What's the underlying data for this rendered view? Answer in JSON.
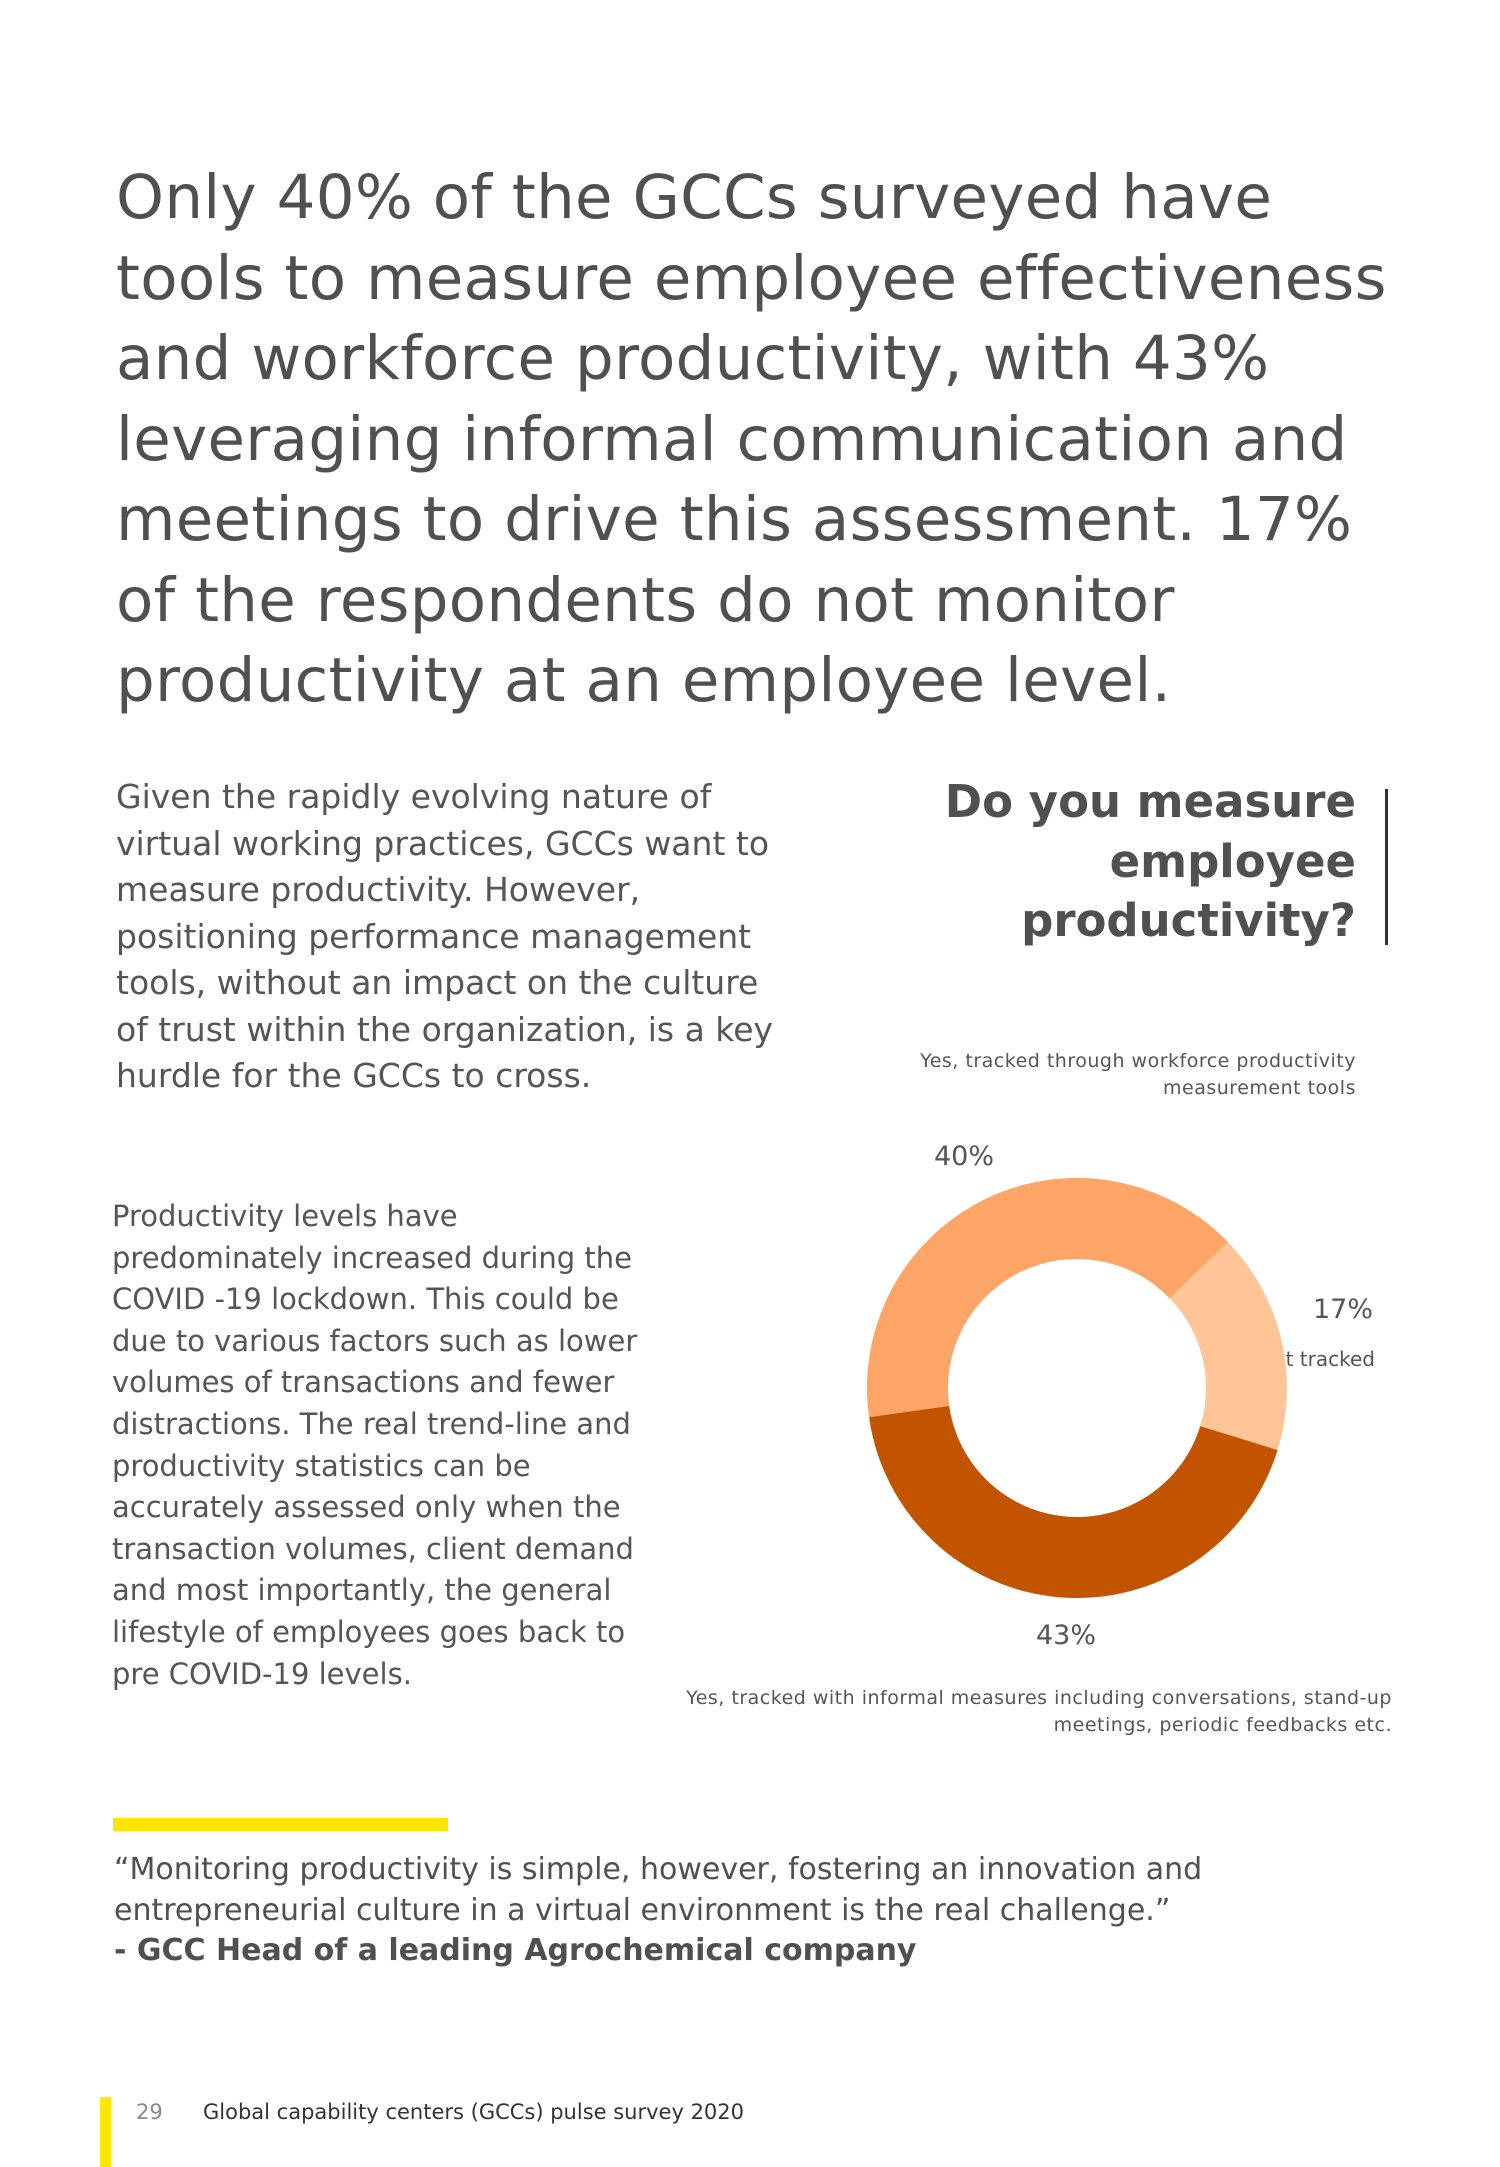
{
  "headline": "Only 40% of the GCCs surveyed have tools to measure employee effectiveness and workforce productivity, with 43% leveraging informal communication and meetings to drive this assessment. 17% of the respondents do not monitor productivity at an employee level.",
  "paragraphs": [
    "Given the rapidly evolving nature of virtual working practices, GCCs want to measure productivity. However, positioning performance management tools, without an impact on the culture of trust within the organization, is a key hurdle for the GCCs to cross.",
    "Productivity levels have predominately increased during the COVID -19 lockdown. This could be due to various factors such as lower volumes of transactions and fewer distractions. The real trend-line and productivity statistics can be accurately assessed only when the transaction volumes, client demand and most importantly, the general lifestyle of employees goes back to pre COVID-19 levels."
  ],
  "chart_data": {
    "type": "pie",
    "donut": true,
    "title": "Do you measure employee productivity?",
    "categories": [
      "Yes, tracked through workforce productivity measurement tools",
      "Not tracked",
      "Yes, tracked with informal measures including conversations, stand-up meetings, periodic feedbacks etc."
    ],
    "values": [
      40,
      17,
      43
    ],
    "data_labels": [
      "40%",
      "17%",
      "43%"
    ],
    "colors": [
      "#FCA567",
      "#FFC597",
      "#C25400"
    ]
  },
  "quote": {
    "text": "“Monitoring productivity is simple, however, fostering an innovation and entrepreneurial culture in a virtual environment is the real challenge.”",
    "attribution": "-  GCC Head of a leading Agrochemical company"
  },
  "footer": {
    "page_number": "29",
    "title": "Global capability centers (GCCs) pulse survey 2020"
  },
  "colors": {
    "accent_yellow": "#FFE600",
    "text": "#555555"
  }
}
